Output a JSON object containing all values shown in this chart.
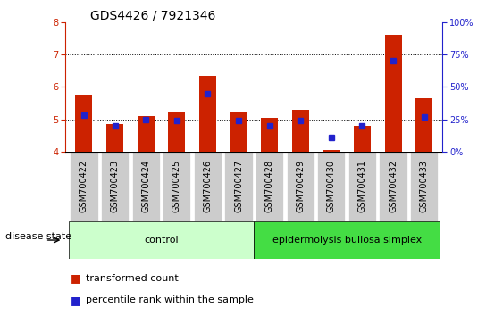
{
  "title": "GDS4426 / 7921346",
  "samples": [
    "GSM700422",
    "GSM700423",
    "GSM700424",
    "GSM700425",
    "GSM700426",
    "GSM700427",
    "GSM700428",
    "GSM700429",
    "GSM700430",
    "GSM700431",
    "GSM700432",
    "GSM700433"
  ],
  "red_values": [
    5.75,
    4.85,
    5.1,
    5.2,
    6.35,
    5.2,
    5.05,
    5.3,
    4.05,
    4.8,
    7.6,
    5.65
  ],
  "blue_percentile": [
    28,
    20,
    25,
    24,
    45,
    24,
    20,
    24,
    11,
    20,
    70,
    27
  ],
  "ylim_left": [
    4,
    8
  ],
  "ylim_right": [
    0,
    100
  ],
  "yticks_left": [
    4,
    5,
    6,
    7,
    8
  ],
  "yticks_right": [
    0,
    25,
    50,
    75,
    100
  ],
  "control_count": 6,
  "disease_count": 6,
  "control_label": "control",
  "disease_label": "epidermolysis bullosa simplex",
  "disease_state_label": "disease state",
  "legend_red": "transformed count",
  "legend_blue": "percentile rank within the sample",
  "bar_width": 0.55,
  "red_color": "#cc2200",
  "blue_color": "#2222cc",
  "control_bg": "#ccffcc",
  "disease_bg": "#44dd44",
  "baseline": 4.0,
  "label_bg": "#cccccc",
  "title_fontsize": 10,
  "tick_fontsize": 7,
  "axis_fontsize": 8
}
